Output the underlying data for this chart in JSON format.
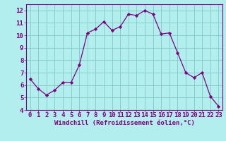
{
  "x": [
    0,
    1,
    2,
    3,
    4,
    5,
    6,
    7,
    8,
    9,
    10,
    11,
    12,
    13,
    14,
    15,
    16,
    17,
    18,
    19,
    20,
    21,
    22,
    23
  ],
  "y": [
    6.5,
    5.7,
    5.2,
    5.6,
    6.2,
    6.2,
    7.6,
    10.2,
    10.5,
    11.1,
    10.4,
    10.7,
    11.7,
    11.6,
    12.0,
    11.7,
    10.1,
    10.2,
    8.6,
    7.0,
    6.6,
    7.0,
    5.1,
    4.3
  ],
  "line_color": "#800080",
  "marker_color": "#800080",
  "bg_color": "#b2eeee",
  "grid_color": "#80c8c8",
  "xlabel": "Windchill (Refroidissement éolien,°C)",
  "xlim": [
    -0.5,
    23.5
  ],
  "ylim": [
    4,
    12.5
  ],
  "yticks": [
    4,
    5,
    6,
    7,
    8,
    9,
    10,
    11,
    12
  ],
  "xticks": [
    0,
    1,
    2,
    3,
    4,
    5,
    6,
    7,
    8,
    9,
    10,
    11,
    12,
    13,
    14,
    15,
    16,
    17,
    18,
    19,
    20,
    21,
    22,
    23
  ],
  "xlabel_fontsize": 6.5,
  "tick_fontsize": 6.5,
  "label_color": "#800080"
}
